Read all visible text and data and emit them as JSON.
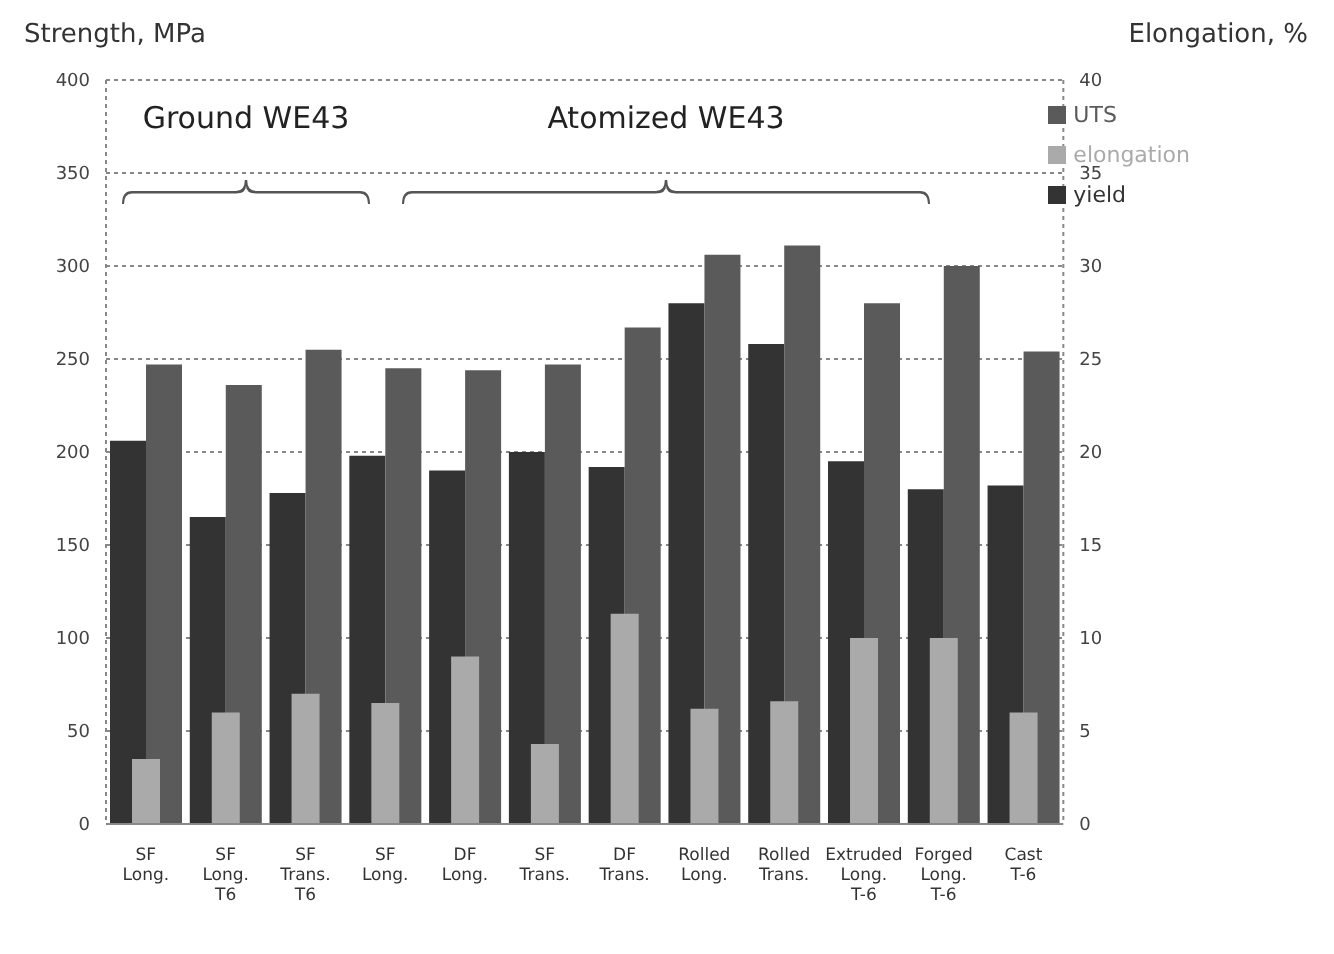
{
  "chart_data": {
    "type": "bar",
    "ylabel": "Strength, MPa",
    "y2label": "Elongation, %",
    "categories": [
      "SF Long.",
      "SF Long. T6",
      "SF Trans. T6",
      "SF Long.",
      "DF Long.",
      "SF Trans.",
      "DF Trans.",
      "Rolled Long.",
      "Rolled Trans.",
      "Extruded Long. T-6",
      "Forged Long. T-6",
      "Cast T-6"
    ],
    "series": [
      {
        "name": "yield",
        "color": "#333333",
        "values": [
          206,
          165,
          178,
          198,
          190,
          200,
          192,
          280,
          258,
          195,
          180,
          182
        ]
      },
      {
        "name": "UTS",
        "color": "#5a5a5a",
        "values": [
          247,
          236,
          255,
          245,
          244,
          247,
          267,
          306,
          311,
          280,
          300,
          254
        ]
      },
      {
        "name": "elongation",
        "color": "#aaaaaa",
        "axis": "y2",
        "values": [
          3.5,
          6,
          7,
          6.5,
          9,
          4.3,
          11.3,
          6.2,
          6.6,
          10,
          10,
          6
        ]
      }
    ],
    "ylim": [
      0,
      400
    ],
    "yticks": [
      0,
      50,
      100,
      150,
      200,
      250,
      300,
      350,
      400
    ],
    "y2lim": [
      0,
      40
    ],
    "y2ticks": [
      0,
      5,
      10,
      15,
      20,
      25,
      30,
      35,
      40
    ],
    "grid": "y",
    "legend": "top right",
    "annotations": [
      "Ground WE43",
      "Atomized WE43"
    ]
  }
}
